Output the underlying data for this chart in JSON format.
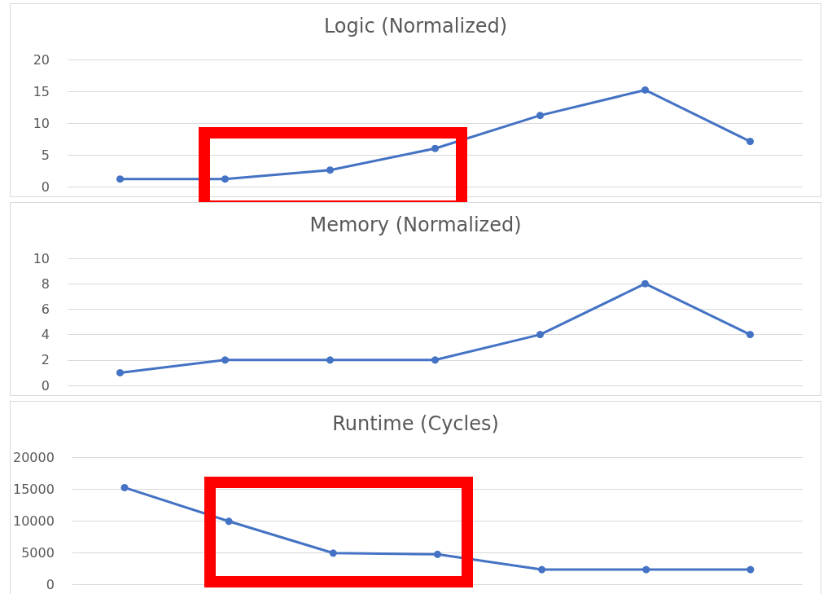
{
  "chart_data": [
    {
      "type": "line",
      "title": "Logic (Normalized)",
      "categories": [
        null,
        null,
        null,
        null,
        null,
        null,
        null
      ],
      "series": [
        {
          "color": "#4472c4",
          "values": [
            1.2,
            1.2,
            2.6,
            6,
            11.2,
            15.2,
            7.1
          ]
        }
      ],
      "ylim": [
        0,
        20
      ],
      "yticks": [
        0,
        5,
        10,
        15,
        20
      ],
      "grid": "y",
      "marker": "circle"
    },
    {
      "type": "line",
      "title": "Memory (Normalized)",
      "categories": [
        null,
        null,
        null,
        null,
        null,
        null,
        null
      ],
      "series": [
        {
          "color": "#4472c4",
          "values": [
            1,
            2,
            2,
            2,
            4,
            8,
            4
          ]
        }
      ],
      "ylim": [
        0,
        10
      ],
      "yticks": [
        0,
        2,
        4,
        6,
        8,
        10
      ],
      "grid": "y",
      "marker": "circle"
    },
    {
      "type": "line",
      "title": "Runtime (Cycles)",
      "categories": [
        null,
        null,
        null,
        null,
        null,
        null,
        null
      ],
      "series": [
        {
          "color": "#4472c4",
          "values": [
            15200,
            9900,
            4900,
            4700,
            2300,
            2300,
            2300
          ]
        }
      ],
      "ylim": [
        0,
        20000
      ],
      "yticks": [
        0,
        5000,
        10000,
        15000,
        20000
      ],
      "grid": "y",
      "marker": "circle"
    }
  ]
}
